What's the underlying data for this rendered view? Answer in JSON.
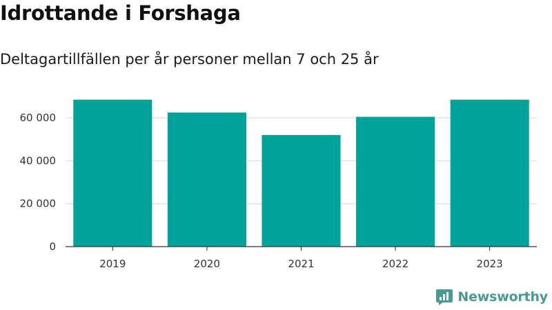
{
  "header": {
    "title": "Idrottande i Forshaga",
    "subtitle": "Deltagartillfällen per år personer mellan 7 och 25 år"
  },
  "brand": {
    "name": "Newsworthy",
    "color": "#4a9a94",
    "icon": "newsworthy-logo-icon"
  },
  "colors": {
    "bar": "#00a29a",
    "grid": "#dddddd",
    "axis": "#333333"
  },
  "chart_data": {
    "type": "bar",
    "categories": [
      "2019",
      "2020",
      "2021",
      "2022",
      "2023"
    ],
    "values": [
      68500,
      62500,
      52000,
      60500,
      68500
    ],
    "ylim": [
      0,
      70000
    ],
    "yticks": [
      0,
      20000,
      40000,
      60000
    ],
    "ytick_labels": [
      "0",
      "20 000",
      "40 000",
      "60 000"
    ],
    "grid": "horizontal",
    "legend": "none"
  }
}
